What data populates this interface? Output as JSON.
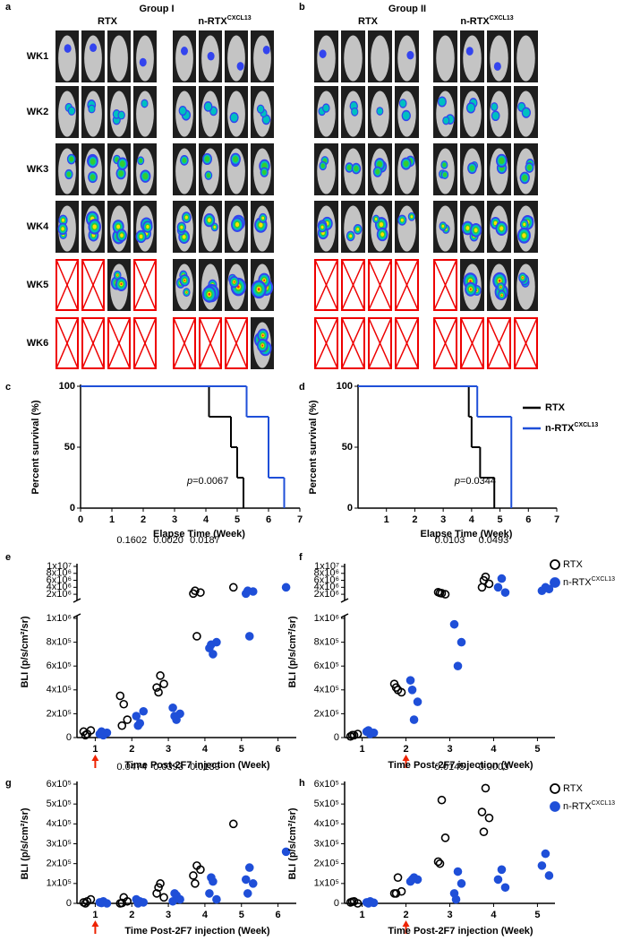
{
  "panel_labels": [
    "a",
    "b",
    "c",
    "d",
    "e",
    "f",
    "g",
    "h"
  ],
  "image_panels": [
    {
      "title": "Group I",
      "columns": [
        {
          "name": "RTX"
        },
        {
          "name": "n-RTX",
          "superscript": "CXCL13"
        }
      ],
      "rows": [
        "WK1",
        "WK2",
        "WK3",
        "WK4",
        "WK5",
        "WK6"
      ]
    },
    {
      "title": "Group II",
      "columns": [
        {
          "name": "RTX"
        },
        {
          "name": "n-RTX",
          "superscript": "CXCL13"
        }
      ],
      "rows": [
        "WK1",
        "WK2",
        "WK3",
        "WK4",
        "WK5",
        "WK6"
      ]
    }
  ],
  "chart_data": [
    {
      "type": "step",
      "xlabel": "Elapse Time (Week)",
      "ylabel": "Percent survival (%)",
      "xlim": [
        0,
        7
      ],
      "xticks": [
        0,
        1,
        2,
        3,
        4,
        5,
        6,
        7
      ],
      "ylim": [
        0,
        100
      ],
      "yticks": [
        0,
        50,
        100
      ],
      "annotation": {
        "prefix": "p",
        "text": "=0.0067"
      },
      "legend": false,
      "series": [
        {
          "name": "RTX",
          "color": "#000000",
          "x": [
            0,
            4.1,
            4.8,
            5.0,
            5.2
          ],
          "values": [
            100,
            75,
            50,
            25,
            0
          ]
        },
        {
          "name": "n-RTX",
          "superscript": "CXCL13",
          "color": "#1f4fd8",
          "x": [
            0,
            5.3,
            6.0,
            6.5
          ],
          "values": [
            100,
            75,
            25,
            0
          ]
        }
      ]
    },
    {
      "type": "step",
      "xlabel": "Elapse Time (Week)",
      "ylabel": "Percent survival (%)",
      "xlim": [
        0,
        7
      ],
      "xticks": [
        1,
        2,
        3,
        4,
        5,
        6,
        7
      ],
      "ylim": [
        0,
        100
      ],
      "yticks": [
        0,
        50,
        100
      ],
      "annotation": {
        "prefix": "p",
        "text": "=0.0344"
      },
      "legend": true,
      "series": [
        {
          "name": "RTX",
          "color": "#000000",
          "x": [
            0,
            3.9,
            4.0,
            4.3,
            4.8
          ],
          "values": [
            100,
            75,
            50,
            25,
            0
          ]
        },
        {
          "name": "n-RTX",
          "superscript": "CXCL13",
          "color": "#1f4fd8",
          "x": [
            0,
            4.2,
            5.4
          ],
          "values": [
            100,
            75,
            0
          ]
        }
      ]
    },
    {
      "type": "dot",
      "xlabel": "Time Post-2F7 injection (Week)",
      "ylabel": "BLI (p/s/cm²/sr)",
      "xlim": [
        0.5,
        6.5
      ],
      "xticks": [
        1,
        2,
        3,
        4,
        5,
        6
      ],
      "injection_week": 1,
      "legend": false,
      "y_segments": [
        {
          "ylim": [
            0,
            1000000
          ],
          "yticks": [
            0,
            {
              "value": 200000,
              "label": "2x10⁵"
            },
            {
              "value": 400000,
              "label": "4x10⁵"
            },
            {
              "value": 600000,
              "label": "6x10⁵"
            },
            {
              "value": 800000,
              "label": "8x10⁵"
            },
            {
              "value": 1000000,
              "label": "1x10⁶"
            }
          ]
        },
        {
          "ylim": [
            1000000,
            10000000
          ],
          "yticks": [
            {
              "value": 2000000,
              "label": "2x10⁶"
            },
            {
              "value": 4000000,
              "label": "4x10⁶"
            },
            {
              "value": 6000000,
              "label": "6x10⁶"
            },
            {
              "value": 8000000,
              "label": "8x10⁶"
            },
            {
              "value": 10000000,
              "label": "1x10⁷"
            }
          ]
        }
      ],
      "p_values": [
        {
          "x": 2,
          "text": "0.1602"
        },
        {
          "x": 3,
          "text": "0.0020"
        },
        {
          "x": 4,
          "text": "0.0187"
        }
      ],
      "series": [
        {
          "name": "RTX",
          "color": "#000000",
          "marker": "open",
          "x": [
            1,
            1,
            1,
            1,
            2,
            2,
            2,
            2,
            3,
            3,
            3,
            3,
            4,
            4,
            4,
            4,
            5
          ],
          "values": [
            30000,
            50000,
            60000,
            20000,
            280000,
            350000,
            150000,
            100000,
            520000,
            420000,
            450000,
            380000,
            850000,
            2200000,
            2500000,
            3000000,
            4000000
          ]
        },
        {
          "name": "n-RTX",
          "superscript": "CXCL13",
          "color": "#1f4fd8",
          "marker": "filled",
          "x": [
            1,
            1,
            1,
            1,
            2,
            2,
            2,
            2,
            3,
            3,
            3,
            3,
            4,
            4,
            4,
            4,
            5,
            5,
            5,
            5,
            6
          ],
          "values": [
            20000,
            30000,
            40000,
            50000,
            120000,
            180000,
            220000,
            100000,
            150000,
            250000,
            200000,
            180000,
            700000,
            750000,
            800000,
            780000,
            850000,
            2200000,
            2800000,
            3000000,
            4000000
          ]
        }
      ]
    },
    {
      "type": "dot",
      "xlabel": "Time Post-2F7 injection (Week)",
      "ylabel": "BLI (p/s/cm²/sr)",
      "xlim": [
        0.6,
        5.4
      ],
      "xticks": [
        1,
        2,
        3,
        4,
        5
      ],
      "injection_week": 2,
      "legend": true,
      "y_segments": [
        {
          "ylim": [
            0,
            1000000
          ],
          "yticks": [
            0,
            {
              "value": 200000,
              "label": "2x10⁵"
            },
            {
              "value": 400000,
              "label": "4x10⁵"
            },
            {
              "value": 600000,
              "label": "6x10⁵"
            },
            {
              "value": 800000,
              "label": "8x10⁵"
            },
            {
              "value": 1000000,
              "label": "1x10⁶"
            }
          ]
        },
        {
          "ylim": [
            1000000,
            10000000
          ],
          "yticks": [
            {
              "value": 2000000,
              "label": "2x10⁶"
            },
            {
              "value": 4000000,
              "label": "4x10⁶"
            },
            {
              "value": 6000000,
              "label": "6x10⁶"
            },
            {
              "value": 8000000,
              "label": "8x10⁶"
            },
            {
              "value": 10000000,
              "label": "1x10⁷"
            }
          ]
        }
      ],
      "p_values": [
        {
          "x": 3,
          "text": "0.0103"
        },
        {
          "x": 4,
          "text": "0.0493"
        }
      ],
      "series": [
        {
          "name": "RTX",
          "color": "#000000",
          "marker": "open",
          "x": [
            1,
            1,
            1,
            1,
            2,
            2,
            2,
            2,
            3,
            3,
            3,
            3,
            4,
            4,
            4,
            4
          ],
          "values": [
            20000,
            10000,
            30000,
            20000,
            400000,
            450000,
            380000,
            420000,
            2300000,
            2600000,
            2000000,
            2400000,
            7000000,
            4000000,
            5000000,
            6000000
          ]
        },
        {
          "name": "n-RTX",
          "superscript": "CXCL13",
          "color": "#1f4fd8",
          "marker": "filled",
          "x": [
            1,
            1,
            1,
            1,
            2,
            2,
            2,
            2,
            3,
            3,
            3,
            4,
            4,
            4,
            5,
            5,
            5
          ],
          "values": [
            30000,
            50000,
            40000,
            60000,
            150000,
            480000,
            300000,
            400000,
            600000,
            950000,
            800000,
            6500000,
            4000000,
            2500000,
            4000000,
            3000000,
            3500000
          ]
        }
      ]
    },
    {
      "type": "dot",
      "xlabel": "Time Post-2F7 injection (Week)",
      "ylabel": "BLI (p/s/cm²/sr)",
      "xlim": [
        0.5,
        6.5
      ],
      "xticks": [
        1,
        2,
        3,
        4,
        5,
        6
      ],
      "injection_week": 1,
      "legend": false,
      "ylim": [
        0,
        600000
      ],
      "yticks": [
        0,
        {
          "value": 100000,
          "label": "1x10⁵"
        },
        {
          "value": 200000,
          "label": "2x10⁵"
        },
        {
          "value": 300000,
          "label": "3x10⁵"
        },
        {
          "value": 400000,
          "label": "4x10⁵"
        },
        {
          "value": 500000,
          "label": "5x10⁵"
        },
        {
          "value": 600000,
          "label": "6x10⁵"
        }
      ],
      "p_values": [
        {
          "x": 2,
          "text": "0.0474"
        },
        {
          "x": 3,
          "text": "0.0393"
        },
        {
          "x": 4,
          "text": "0.0139"
        }
      ],
      "series": [
        {
          "name": "RTX",
          "color": "#000000",
          "marker": "open",
          "x": [
            1,
            1,
            1,
            1,
            2,
            2,
            2,
            2,
            3,
            3,
            3,
            3,
            4,
            4,
            4,
            4,
            5
          ],
          "values": [
            10000,
            5000,
            20000,
            0,
            30000,
            0,
            10000,
            2000,
            100000,
            50000,
            30000,
            80000,
            190000,
            140000,
            170000,
            100000,
            400000
          ]
        },
        {
          "name": "n-RTX",
          "superscript": "CXCL13",
          "color": "#1f4fd8",
          "marker": "filled",
          "x": [
            1,
            1,
            1,
            1,
            2,
            2,
            2,
            2,
            3,
            3,
            3,
            3,
            4,
            4,
            4,
            4,
            5,
            5,
            5,
            5,
            6
          ],
          "values": [
            10000,
            5000,
            0,
            2000,
            10000,
            20000,
            5000,
            0,
            40000,
            10000,
            20000,
            50000,
            110000,
            50000,
            20000,
            130000,
            180000,
            120000,
            100000,
            50000,
            260000
          ]
        }
      ]
    },
    {
      "type": "dot",
      "xlabel": "Time Post-2F7 injection (Week)",
      "ylabel": "BLI (p/s/cm²/sr)",
      "xlim": [
        0.6,
        5.4
      ],
      "xticks": [
        1,
        2,
        3,
        4,
        5
      ],
      "injection_week": 2,
      "legend": true,
      "ylim": [
        0,
        600000
      ],
      "yticks": [
        0,
        {
          "value": 100000,
          "label": "1x10⁵"
        },
        {
          "value": 200000,
          "label": "2x10⁵"
        },
        {
          "value": 300000,
          "label": "3x10⁵"
        },
        {
          "value": 400000,
          "label": "4x10⁵"
        },
        {
          "value": 500000,
          "label": "5x10⁵"
        },
        {
          "value": 600000,
          "label": "6x10⁵"
        }
      ],
      "p_values": [
        {
          "x": 3,
          "text": "0.0145"
        },
        {
          "x": 4,
          "text": "0.0003"
        }
      ],
      "series": [
        {
          "name": "RTX",
          "color": "#000000",
          "marker": "open",
          "x": [
            1,
            1,
            1,
            1,
            2,
            2,
            2,
            2,
            3,
            3,
            3,
            3,
            4,
            4,
            4,
            4
          ],
          "values": [
            10000,
            5000,
            0,
            8000,
            130000,
            50000,
            60000,
            50000,
            520000,
            210000,
            330000,
            200000,
            580000,
            460000,
            430000,
            360000
          ]
        },
        {
          "name": "n-RTX",
          "superscript": "CXCL13",
          "color": "#1f4fd8",
          "marker": "filled",
          "x": [
            1,
            1,
            1,
            1,
            2,
            2,
            2,
            2,
            3,
            3,
            3,
            3,
            4,
            4,
            4,
            5,
            5,
            5
          ],
          "values": [
            10000,
            5000,
            3000,
            0,
            130000,
            110000,
            120000,
            120000,
            160000,
            50000,
            100000,
            20000,
            170000,
            120000,
            80000,
            250000,
            190000,
            140000
          ]
        }
      ]
    }
  ]
}
